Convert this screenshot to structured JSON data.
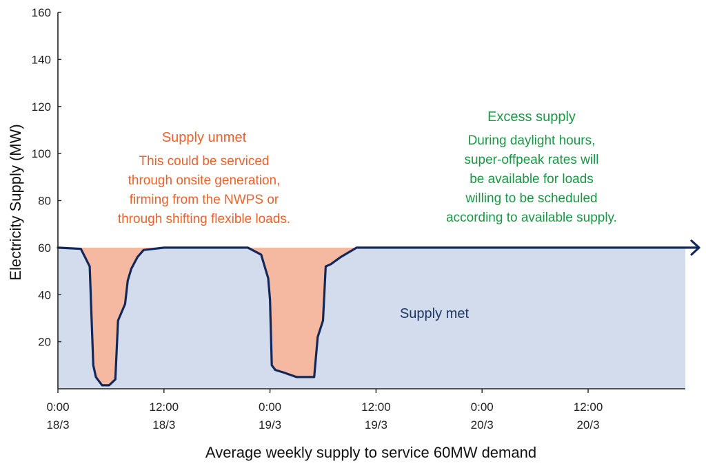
{
  "chart_data": {
    "type": "area",
    "title": "",
    "xlabel": "Average weekly supply to service 60MW demand",
    "ylabel": "Electricity Supply (MW)",
    "ylim": [
      0,
      160
    ],
    "y_ticks": [
      "160",
      "140",
      "120",
      "100",
      "80",
      "60",
      "40",
      "20"
    ],
    "x_range_hours": [
      0,
      71
    ],
    "x_ticks": [
      {
        "time": "0:00",
        "date": "18/3"
      },
      {
        "time": "12:00",
        "date": "18/3"
      },
      {
        "time": "0:00",
        "date": "19/3"
      },
      {
        "time": "12:00",
        "date": "19/3"
      },
      {
        "time": "0:00",
        "date": "20/3"
      },
      {
        "time": "12:00",
        "date": "20/3"
      }
    ],
    "demand_mw": 60,
    "supply_series": {
      "x_hours": [
        0,
        2.6,
        3.6,
        4.0,
        4.3,
        5.0,
        5.8,
        6.5,
        6.8,
        7.6,
        7.9,
        8.3,
        9.0,
        9.7,
        12.0,
        21.5,
        23.0,
        23.8,
        24.0,
        24.2,
        24.6,
        25.5,
        27.0,
        29.0,
        29.4,
        30.0,
        30.3,
        30.9,
        32.0,
        33.8,
        71.0
      ],
      "supply_mw": [
        60,
        59.5,
        52,
        10,
        5,
        1.5,
        1.5,
        4,
        29,
        36,
        46,
        51,
        56,
        59,
        60,
        60,
        57,
        47,
        38,
        10,
        8,
        7,
        5,
        5,
        22,
        29,
        52,
        53,
        56,
        60,
        60
      ]
    },
    "colors": {
      "supply_met": "#d3dcec",
      "supply_unmet": "#f5b8a0",
      "supply_line": "#12285a",
      "unmet_text": "#e8622c",
      "excess_text": "#1a9645",
      "met_text": "#1f3566"
    },
    "annotations": {
      "unmet_title": "Supply unmet",
      "unmet_lines": [
        "This could be serviced",
        "through onsite  generation,",
        "firming from the NWPS or",
        "through shifting flexible loads."
      ],
      "excess_title": "Excess supply",
      "excess_lines": [
        "During daylight hours,",
        "super-offpeak rates will",
        "be available for loads",
        "willing to be scheduled",
        "according to available supply."
      ],
      "met_label": "Supply met"
    }
  }
}
